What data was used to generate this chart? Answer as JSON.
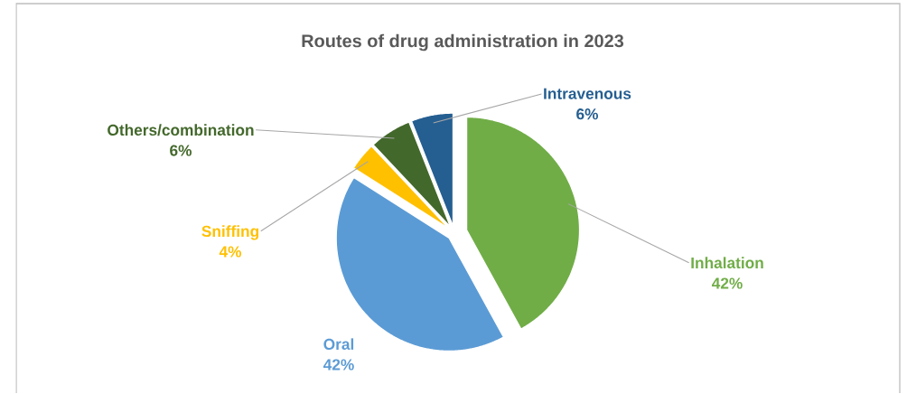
{
  "chart_data": {
    "type": "pie",
    "title": "Routes of drug administration in 2023",
    "categories": [
      "Inhalation",
      "Oral",
      "Sniffing",
      "Others/combination",
      "Intravenous"
    ],
    "values": [
      42,
      42,
      4,
      6,
      6
    ],
    "value_labels": [
      "42%",
      "42%",
      "4%",
      "6%",
      "6%"
    ],
    "colors": [
      "#70ad47",
      "#5b9bd5",
      "#ffc000",
      "#43682b",
      "#255e91"
    ]
  }
}
